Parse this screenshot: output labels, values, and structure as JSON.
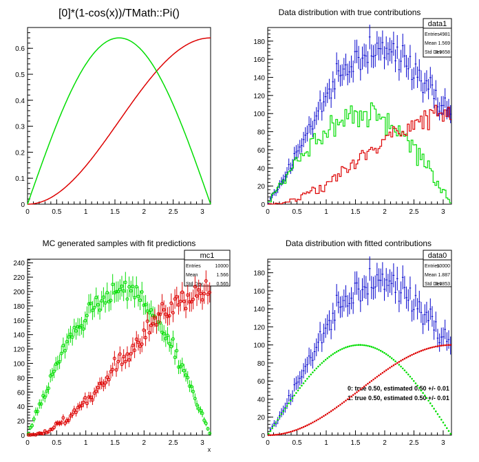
{
  "canvas": {
    "pads": [
      {
        "title": "[0]*(1-cos(x))/TMath::Pi()",
        "title_large": true,
        "xticks": [
          "0",
          "0.5",
          "1",
          "1.5",
          "2",
          "2.5",
          "3"
        ],
        "yticks": [
          "0",
          "0.1",
          "0.2",
          "0.3",
          "0.4",
          "0.5",
          "0.6"
        ],
        "stats": null,
        "legend_lines": []
      },
      {
        "title": "Data distribution with true contributions",
        "title_large": false,
        "xticks": [
          "0",
          "0.5",
          "1",
          "1.5",
          "2",
          "2.5",
          "3"
        ],
        "yticks": [
          "0",
          "20",
          "40",
          "60",
          "80",
          "100",
          "120",
          "140",
          "160",
          "180"
        ],
        "stats": {
          "name": "data1",
          "rows": [
            {
              "label": "Entries",
              "value": "4981"
            },
            {
              "label": "Mean",
              "value": "1.569"
            },
            {
              "label": "Std Dev",
              "value": "0.5658"
            }
          ]
        },
        "legend_lines": []
      },
      {
        "title": "MC generated samples with fit predictions",
        "title_large": false,
        "xticks": [
          "0",
          "0.5",
          "1",
          "1.5",
          "2",
          "2.5",
          "3"
        ],
        "yticks": [
          "0",
          "20",
          "40",
          "60",
          "80",
          "100",
          "120",
          "140",
          "160",
          "180",
          "200",
          "220",
          "240"
        ],
        "xaxis_title": "x",
        "stats": {
          "name": "mc1",
          "rows": [
            {
              "label": "Entries",
              "value": "10000"
            },
            {
              "label": "Mean",
              "value": "1.566"
            },
            {
              "label": "Std Dev",
              "value": "0.565"
            }
          ]
        },
        "legend_lines": []
      },
      {
        "title": "Data distribution with fitted contributions",
        "title_large": false,
        "xticks": [
          "0",
          "0.5",
          "1",
          "1.5",
          "2",
          "2.5",
          "3"
        ],
        "yticks": [
          "0",
          "20",
          "40",
          "60",
          "80",
          "100",
          "120",
          "140",
          "160",
          "180"
        ],
        "stats": {
          "name": "data0",
          "rows": [
            {
              "label": "Entries",
              "value": "10000"
            },
            {
              "label": "Mean",
              "value": "1.887"
            },
            {
              "label": "Std Dev",
              "value": "0.6853"
            }
          ]
        },
        "legend_lines": [
          "0: true 0.50, estimated 0.50 +/- 0.01",
          "1: true 0.50, estimated 0.50 +/- 0.01"
        ]
      }
    ]
  },
  "chart_data": [
    {
      "type": "line",
      "title": "[0]*(1-cos(x))/TMath::Pi()",
      "xlim": [
        0,
        3.14159
      ],
      "ylim": [
        0,
        0.68
      ],
      "series": [
        {
          "color": "#dd0000",
          "function": "0.64*(1-cos(x))/2",
          "x": [
            0,
            0.5,
            1,
            1.5,
            2,
            2.5,
            3.14
          ],
          "y": [
            0,
            0.039,
            0.147,
            0.297,
            0.453,
            0.576,
            0.64
          ]
        },
        {
          "color": "#00dd00",
          "function": "0.64*sin(x)",
          "x": [
            0,
            0.5,
            1,
            1.5,
            1.5708,
            2,
            2.5,
            3.14
          ],
          "y": [
            0,
            0.307,
            0.539,
            0.638,
            0.64,
            0.582,
            0.383,
            0.001
          ]
        }
      ]
    },
    {
      "type": "histogram",
      "title": "Data distribution with true contributions",
      "xlim": [
        0,
        3.14159
      ],
      "ylim": [
        0,
        195
      ],
      "bins": 100,
      "series": [
        {
          "color": "#0000cc",
          "style": "errorbars",
          "x": [
            0.25,
            0.5,
            0.75,
            1.0,
            1.25,
            1.5,
            1.75,
            2.0,
            2.25,
            2.5,
            2.75,
            3.0
          ],
          "y": [
            8,
            27,
            55,
            85,
            120,
            150,
            165,
            160,
            150,
            140,
            125,
            100
          ]
        },
        {
          "color": "#00dd00",
          "style": "step",
          "x": [
            0.25,
            0.5,
            0.75,
            1.0,
            1.25,
            1.5,
            1.75,
            2.0,
            2.25,
            2.5,
            2.75,
            3.0
          ],
          "y": [
            5,
            18,
            40,
            60,
            80,
            95,
            103,
            95,
            75,
            50,
            20,
            2
          ]
        },
        {
          "color": "#dd0000",
          "style": "step",
          "x": [
            0.25,
            0.5,
            0.75,
            1.0,
            1.25,
            1.5,
            1.75,
            2.0,
            2.25,
            2.5,
            2.75,
            3.0
          ],
          "y": [
            1,
            5,
            10,
            18,
            25,
            35,
            45,
            55,
            70,
            85,
            97,
            100
          ]
        }
      ]
    },
    {
      "type": "histogram",
      "title": "MC generated samples with fit predictions",
      "xlim": [
        0,
        3.14159
      ],
      "ylim": [
        0,
        245
      ],
      "bins": 100,
      "series": [
        {
          "color": "#00dd00",
          "style": "errorbars+markers",
          "x": [
            0.25,
            0.5,
            0.75,
            1.0,
            1.25,
            1.5,
            1.75,
            2.0,
            2.25,
            2.5,
            2.75,
            3.0
          ],
          "y": [
            30,
            75,
            130,
            170,
            195,
            200,
            180,
            150,
            105,
            60,
            20,
            2
          ]
        },
        {
          "color": "#dd0000",
          "style": "errorbars+markers",
          "x": [
            0.25,
            0.5,
            0.75,
            1.0,
            1.25,
            1.5,
            1.75,
            2.0,
            2.25,
            2.5,
            2.75,
            3.0
          ],
          "y": [
            5,
            15,
            35,
            55,
            85,
            105,
            130,
            150,
            170,
            185,
            195,
            205
          ]
        }
      ]
    },
    {
      "type": "histogram",
      "title": "Data distribution with fitted contributions",
      "xlim": [
        0,
        3.14159
      ],
      "ylim": [
        0,
        195
      ],
      "bins": 100,
      "series": [
        {
          "color": "#0000cc",
          "style": "errorbars",
          "x": [
            0.25,
            0.5,
            0.75,
            1.0,
            1.25,
            1.5,
            1.75,
            2.0,
            2.25,
            2.5,
            2.75,
            3.0
          ],
          "y": [
            8,
            27,
            55,
            85,
            120,
            150,
            165,
            160,
            150,
            140,
            125,
            100
          ]
        },
        {
          "color": "#00dd00",
          "style": "dotted-curve",
          "x": [
            0.25,
            0.5,
            0.75,
            1.0,
            1.25,
            1.5,
            1.75,
            2.0,
            2.25,
            2.5,
            2.75,
            3.0
          ],
          "y": [
            25,
            48,
            68,
            84,
            95,
            100,
            98,
            91,
            78,
            60,
            38,
            14
          ]
        },
        {
          "color": "#dd0000",
          "style": "dotted-curve",
          "x": [
            0.25,
            0.5,
            0.75,
            1.0,
            1.25,
            1.5,
            1.75,
            2.0,
            2.25,
            2.5,
            2.75,
            3.0
          ],
          "y": [
            2,
            6,
            13,
            23,
            34,
            46,
            59,
            71,
            81,
            90,
            97,
            100
          ]
        }
      ]
    }
  ]
}
